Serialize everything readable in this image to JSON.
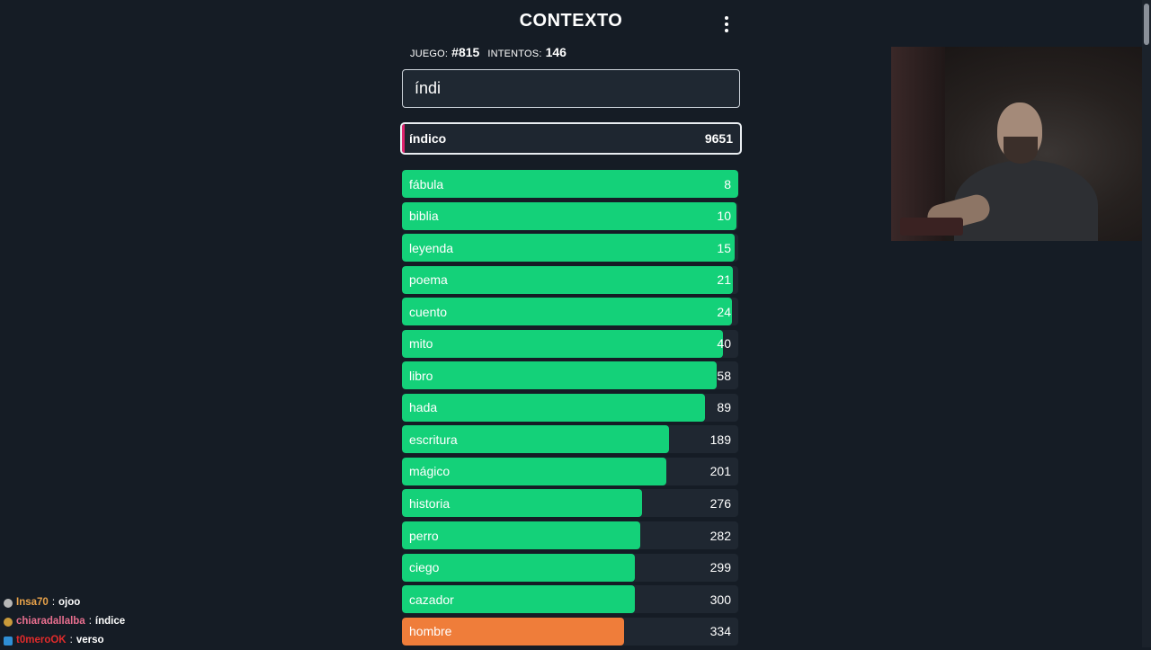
{
  "header": {
    "title": "CONTEXTO",
    "menu_icon": "vertical-dots-icon"
  },
  "stats": {
    "game_label": "JUEGO:",
    "game_value": "#815",
    "attempts_label": "INTENTOS:",
    "attempts_value": "146"
  },
  "input": {
    "value": "índi",
    "placeholder": ""
  },
  "current_guess": {
    "word": "índico",
    "rank": "9651",
    "accent_color": "#e0246f"
  },
  "colors": {
    "green": "#14d179",
    "orange": "#ef7d3a",
    "background": "#151c25",
    "row_track": "#1f2731"
  },
  "guesses": [
    {
      "word": "fábula",
      "rank": "8",
      "fill": 1.0,
      "color": "#14d179"
    },
    {
      "word": "biblia",
      "rank": "10",
      "fill": 0.995,
      "color": "#14d179"
    },
    {
      "word": "leyenda",
      "rank": "15",
      "fill": 0.99,
      "color": "#14d179"
    },
    {
      "word": "poema",
      "rank": "21",
      "fill": 0.985,
      "color": "#14d179"
    },
    {
      "word": "cuento",
      "rank": "24",
      "fill": 0.98,
      "color": "#14d179"
    },
    {
      "word": "mito",
      "rank": "40",
      "fill": 0.955,
      "color": "#14d179"
    },
    {
      "word": "libro",
      "rank": "58",
      "fill": 0.935,
      "color": "#14d179"
    },
    {
      "word": "hada",
      "rank": "89",
      "fill": 0.9,
      "color": "#14d179"
    },
    {
      "word": "escritura",
      "rank": "189",
      "fill": 0.795,
      "color": "#14d179"
    },
    {
      "word": "mágico",
      "rank": "201",
      "fill": 0.785,
      "color": "#14d179"
    },
    {
      "word": "historia",
      "rank": "276",
      "fill": 0.713,
      "color": "#14d179"
    },
    {
      "word": "perro",
      "rank": "282",
      "fill": 0.708,
      "color": "#14d179"
    },
    {
      "word": "ciego",
      "rank": "299",
      "fill": 0.693,
      "color": "#14d179"
    },
    {
      "word": "cazador",
      "rank": "300",
      "fill": 0.692,
      "color": "#14d179"
    },
    {
      "word": "hombre",
      "rank": "334",
      "fill": 0.661,
      "color": "#ef7d3a"
    }
  ],
  "chat": [
    {
      "user": "Insa70",
      "message": "ojoo",
      "user_color": "#e8a24a"
    },
    {
      "user": "chiaradallalba",
      "message": "índice",
      "user_color": "#e86f8f"
    },
    {
      "user": "t0meroOK",
      "message": "verso",
      "user_color": "#e02b2b"
    }
  ]
}
